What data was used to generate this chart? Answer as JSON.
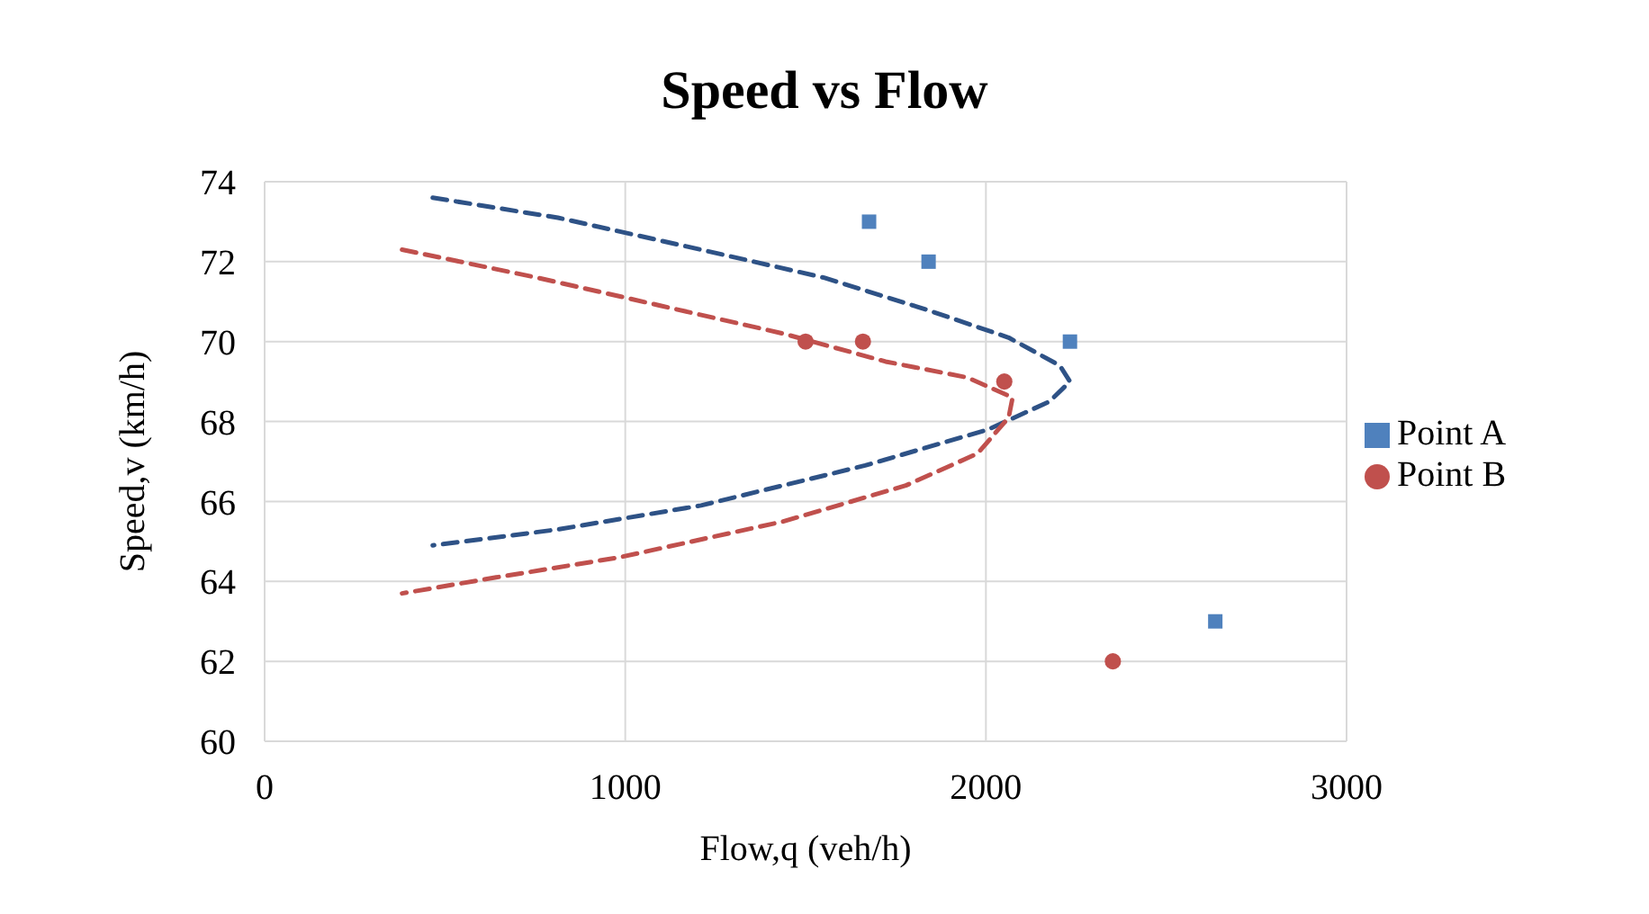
{
  "chart_data": {
    "type": "scatter",
    "title": "Speed vs Flow",
    "xlabel": "Flow,q (veh/h)",
    "ylabel": "Speed,v (km/h)",
    "xlim": [
      0,
      3000
    ],
    "xticks": [
      0,
      1000,
      2000,
      3000
    ],
    "ylim": [
      60,
      74
    ],
    "yticks": [
      60,
      62,
      64,
      66,
      68,
      70,
      72,
      74
    ],
    "grid": true,
    "legend": "right",
    "series": [
      {
        "name": "Point A",
        "marker": "square",
        "color": "#4f81bd",
        "x": [
          1676,
          1841,
          2233,
          2636
        ],
        "values": [
          73,
          72,
          70,
          63
        ]
      },
      {
        "name": "Point B",
        "marker": "circle",
        "color": "#c0504d",
        "x": [
          1500,
          1659,
          2051,
          2352
        ],
        "values": [
          70,
          70,
          69,
          62
        ]
      },
      {
        "type": "line",
        "marker": "none",
        "line_style": "dashed",
        "color": "#2e5286",
        "x": [
          466,
          813,
          1210,
          1551,
          1835,
          2063,
          2205,
          2233,
          2176,
          2006,
          1665,
          1210,
          813,
          466
        ],
        "values": [
          73.6,
          73.1,
          72.3,
          71.6,
          70.8,
          70.1,
          69.4,
          69.0,
          68.5,
          67.8,
          66.9,
          65.9,
          65.3,
          64.9
        ]
      },
      {
        "type": "line",
        "marker": "none",
        "line_style": "dashed",
        "color": "#c0504d",
        "x": [
          381,
          756,
          1097,
          1438,
          1722,
          1949,
          2074,
          2063,
          1977,
          1778,
          1438,
          983,
          642,
          381
        ],
        "values": [
          72.3,
          71.6,
          70.9,
          70.2,
          69.5,
          69.1,
          68.6,
          68.1,
          67.2,
          66.4,
          65.5,
          64.6,
          64.1,
          63.7
        ]
      }
    ]
  }
}
